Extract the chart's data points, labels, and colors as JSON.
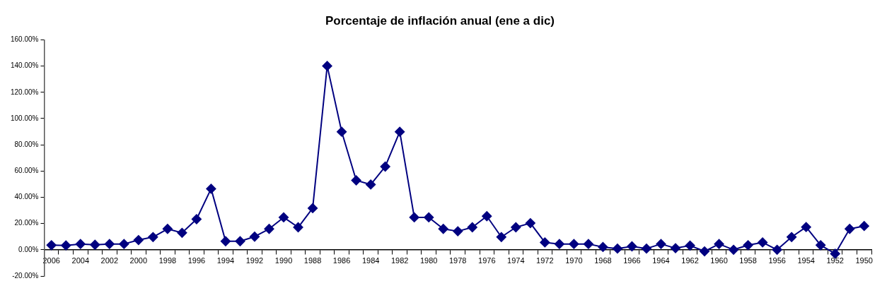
{
  "chart_data": {
    "type": "line",
    "title": "Porcentaje de inflación anual (ene a dic)",
    "categories": [
      "2006",
      null,
      "2004",
      null,
      "2002",
      null,
      "2000",
      null,
      "1998",
      null,
      "1996",
      null,
      "1994",
      null,
      "1992",
      null,
      "1990",
      null,
      "1988",
      null,
      "1986",
      null,
      "1984",
      null,
      "1982",
      null,
      "1980",
      null,
      "1978",
      null,
      "1976",
      null,
      "1974",
      null,
      "1972",
      null,
      "1970",
      null,
      "1968",
      null,
      "1966",
      null,
      "1964",
      null,
      "1962",
      null,
      "1960",
      null,
      "1958",
      null,
      "1956",
      null,
      "1954",
      null,
      "1952",
      null,
      "1950"
    ],
    "series": [
      {
        "color": "#000080",
        "values": [
          3.5,
          3.3,
          4.4,
          3.8,
          4.4,
          4.4,
          7.4,
          9.7,
          15.9,
          12.9,
          23.3,
          46.5,
          6.5,
          6.5,
          10.0,
          15.9,
          24.7,
          17.1,
          31.7,
          140.1,
          89.9,
          52.9,
          49.7,
          63.4,
          89.9,
          24.7,
          24.7,
          15.9,
          14.1,
          17.1,
          25.6,
          9.7,
          17.1,
          20.3,
          5.6,
          4.4,
          4.4,
          4.4,
          2.1,
          0.9,
          2.6,
          0.9,
          4.4,
          1.2,
          3.2,
          -1.2,
          4.4,
          0,
          3.5,
          5.6,
          0,
          9.7,
          17.3,
          3.5,
          -3.0,
          15.9,
          18.1
        ]
      }
    ],
    "ylim": [
      -20,
      160
    ],
    "yticks": [
      {
        "value": -20,
        "label": "-20.00%"
      },
      {
        "value": 0,
        "label": "0.00%"
      },
      {
        "value": 20,
        "label": "20.00%"
      },
      {
        "value": 40,
        "label": "40.00%"
      },
      {
        "value": 60,
        "label": "60.00%"
      },
      {
        "value": 80,
        "label": "80.00%"
      },
      {
        "value": 100,
        "label": "100.00%"
      },
      {
        "value": 120,
        "label": "120.00%"
      },
      {
        "value": 140,
        "label": "140.00%"
      },
      {
        "value": 160,
        "label": "160.00%"
      }
    ],
    "grid": false,
    "legend": false,
    "marker": "diamond",
    "line_style": "solid"
  }
}
